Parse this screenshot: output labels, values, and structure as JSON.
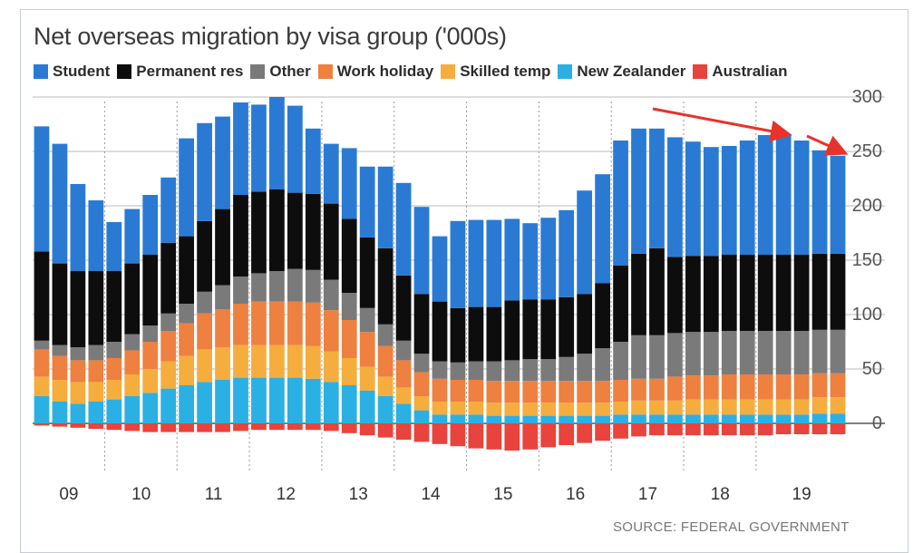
{
  "chart_data": {
    "type": "bar",
    "stacked": true,
    "title": "Net overseas migration by visa group ('000s)",
    "source": "SOURCE: FEDERAL GOVERNMENT",
    "ylim": [
      -30,
      300
    ],
    "yticks": [
      300,
      250,
      200,
      150,
      100,
      50,
      0
    ],
    "y_axis_side": "right",
    "grid": "horizontal solid, vertical dotted at year boundaries",
    "legend_position": "top",
    "year_labels": [
      "09",
      "10",
      "11",
      "12",
      "13",
      "14",
      "15",
      "16",
      "17",
      "18",
      "19"
    ],
    "series_order": [
      "New Zealander",
      "Skilled temp",
      "Work holiday",
      "Other",
      "Permanent res",
      "Student"
    ],
    "series": [
      {
        "name": "Student",
        "color": "#2a7ad4",
        "values": [
          115,
          110,
          80,
          65,
          45,
          50,
          55,
          60,
          90,
          90,
          85,
          85,
          80,
          85,
          80,
          60,
          55,
          65,
          65,
          75,
          85,
          80,
          60,
          80,
          80,
          80,
          75,
          70,
          75,
          80,
          95,
          100,
          115,
          115,
          110,
          110,
          105,
          100,
          100,
          105,
          110,
          110,
          105,
          95,
          90
        ]
      },
      {
        "name": "Permanent res",
        "color": "#0d0d0d",
        "values": [
          82,
          75,
          70,
          68,
          65,
          65,
          65,
          65,
          62,
          65,
          70,
          75,
          75,
          75,
          70,
          70,
          70,
          68,
          65,
          70,
          60,
          55,
          55,
          50,
          50,
          50,
          55,
          55,
          55,
          55,
          55,
          60,
          70,
          75,
          80,
          70,
          70,
          70,
          70,
          70,
          70,
          70,
          70,
          70,
          70
        ]
      },
      {
        "name": "Other",
        "color": "#7a7a7a",
        "values": [
          8,
          10,
          12,
          14,
          15,
          15,
          15,
          16,
          18,
          20,
          22,
          25,
          26,
          28,
          30,
          30,
          28,
          25,
          22,
          20,
          18,
          17,
          16,
          16,
          17,
          18,
          19,
          20,
          20,
          22,
          25,
          30,
          35,
          40,
          40,
          40,
          40,
          40,
          40,
          40,
          40,
          40,
          40,
          40,
          40
        ]
      },
      {
        "name": "Work holiday",
        "color": "#ee8040",
        "values": [
          25,
          22,
          20,
          20,
          20,
          22,
          25,
          28,
          30,
          33,
          35,
          38,
          40,
          40,
          40,
          40,
          38,
          35,
          32,
          28,
          25,
          22,
          21,
          20,
          20,
          20,
          20,
          20,
          20,
          20,
          20,
          20,
          20,
          20,
          20,
          22,
          22,
          22,
          23,
          23,
          23,
          23,
          23,
          22,
          22
        ]
      },
      {
        "name": "Skilled temp",
        "color": "#f5ad3e",
        "values": [
          18,
          20,
          20,
          18,
          18,
          20,
          22,
          25,
          27,
          30,
          30,
          30,
          30,
          30,
          30,
          30,
          28,
          25,
          22,
          18,
          15,
          13,
          12,
          12,
          12,
          12,
          12,
          12,
          12,
          12,
          12,
          12,
          12,
          13,
          13,
          13,
          14,
          14,
          14,
          14,
          14,
          14,
          14,
          15,
          15
        ]
      },
      {
        "name": "New Zealander",
        "color": "#2bb0e4",
        "values": [
          25,
          20,
          18,
          20,
          22,
          25,
          28,
          32,
          35,
          38,
          40,
          42,
          42,
          42,
          42,
          41,
          38,
          35,
          30,
          25,
          18,
          12,
          8,
          8,
          8,
          7,
          7,
          7,
          7,
          7,
          7,
          7,
          8,
          8,
          8,
          8,
          8,
          8,
          8,
          8,
          8,
          8,
          8,
          9,
          9
        ]
      },
      {
        "name": "Australian",
        "color": "#e8433c",
        "values": [
          -2,
          -3,
          -4,
          -5,
          -6,
          -7,
          -8,
          -8,
          -8,
          -8,
          -8,
          -7,
          -6,
          -6,
          -6,
          -6,
          -7,
          -9,
          -11,
          -13,
          -15,
          -17,
          -19,
          -21,
          -23,
          -24,
          -25,
          -24,
          -22,
          -20,
          -18,
          -16,
          -14,
          -12,
          -11,
          -11,
          -11,
          -11,
          -11,
          -11,
          -11,
          -10,
          -10,
          -10,
          -10
        ]
      }
    ]
  },
  "annotation": {
    "arrow_color": "#e8322c"
  }
}
